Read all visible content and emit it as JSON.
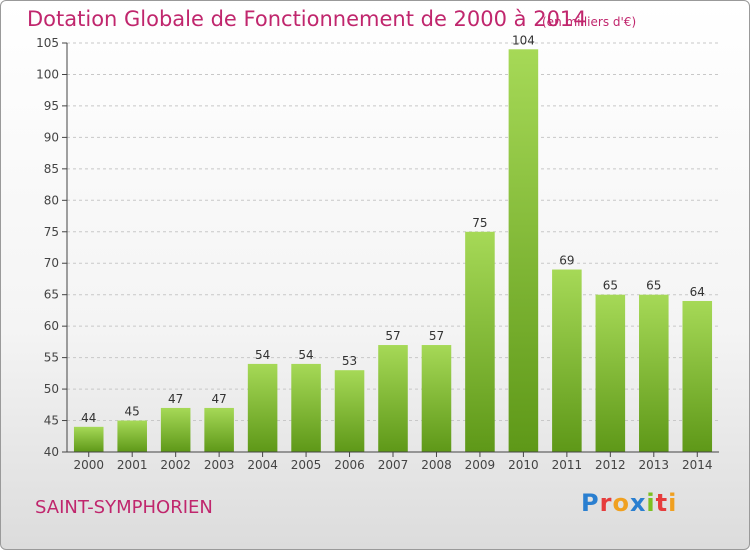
{
  "header": {
    "title": "Dotation Globale de Fonctionnement de 2000 à 2014",
    "unit": "(en milliers d'€)"
  },
  "footer": {
    "town": "SAINT-SYMPHORIEN",
    "brand": "Proxiti"
  },
  "chart_data": {
    "type": "bar",
    "title": "Dotation Globale de Fonctionnement de 2000 à 2014",
    "subtitle": "(en milliers d'€)",
    "xlabel": "",
    "ylabel": "",
    "categories": [
      "2000",
      "2001",
      "2002",
      "2003",
      "2004",
      "2005",
      "2006",
      "2007",
      "2008",
      "2009",
      "2010",
      "2011",
      "2012",
      "2013",
      "2014"
    ],
    "values": [
      44,
      45,
      47,
      47,
      54,
      54,
      53,
      57,
      57,
      75,
      104,
      69,
      65,
      65,
      64
    ],
    "ylim": [
      40,
      105
    ],
    "yticks": [
      40,
      45,
      50,
      55,
      60,
      65,
      70,
      75,
      80,
      85,
      90,
      95,
      100,
      105
    ],
    "grid": "horizontal dashed",
    "colors": {
      "bar_top": "#a6d957",
      "bar_bottom": "#5e9818",
      "title": "#c0266d"
    }
  }
}
